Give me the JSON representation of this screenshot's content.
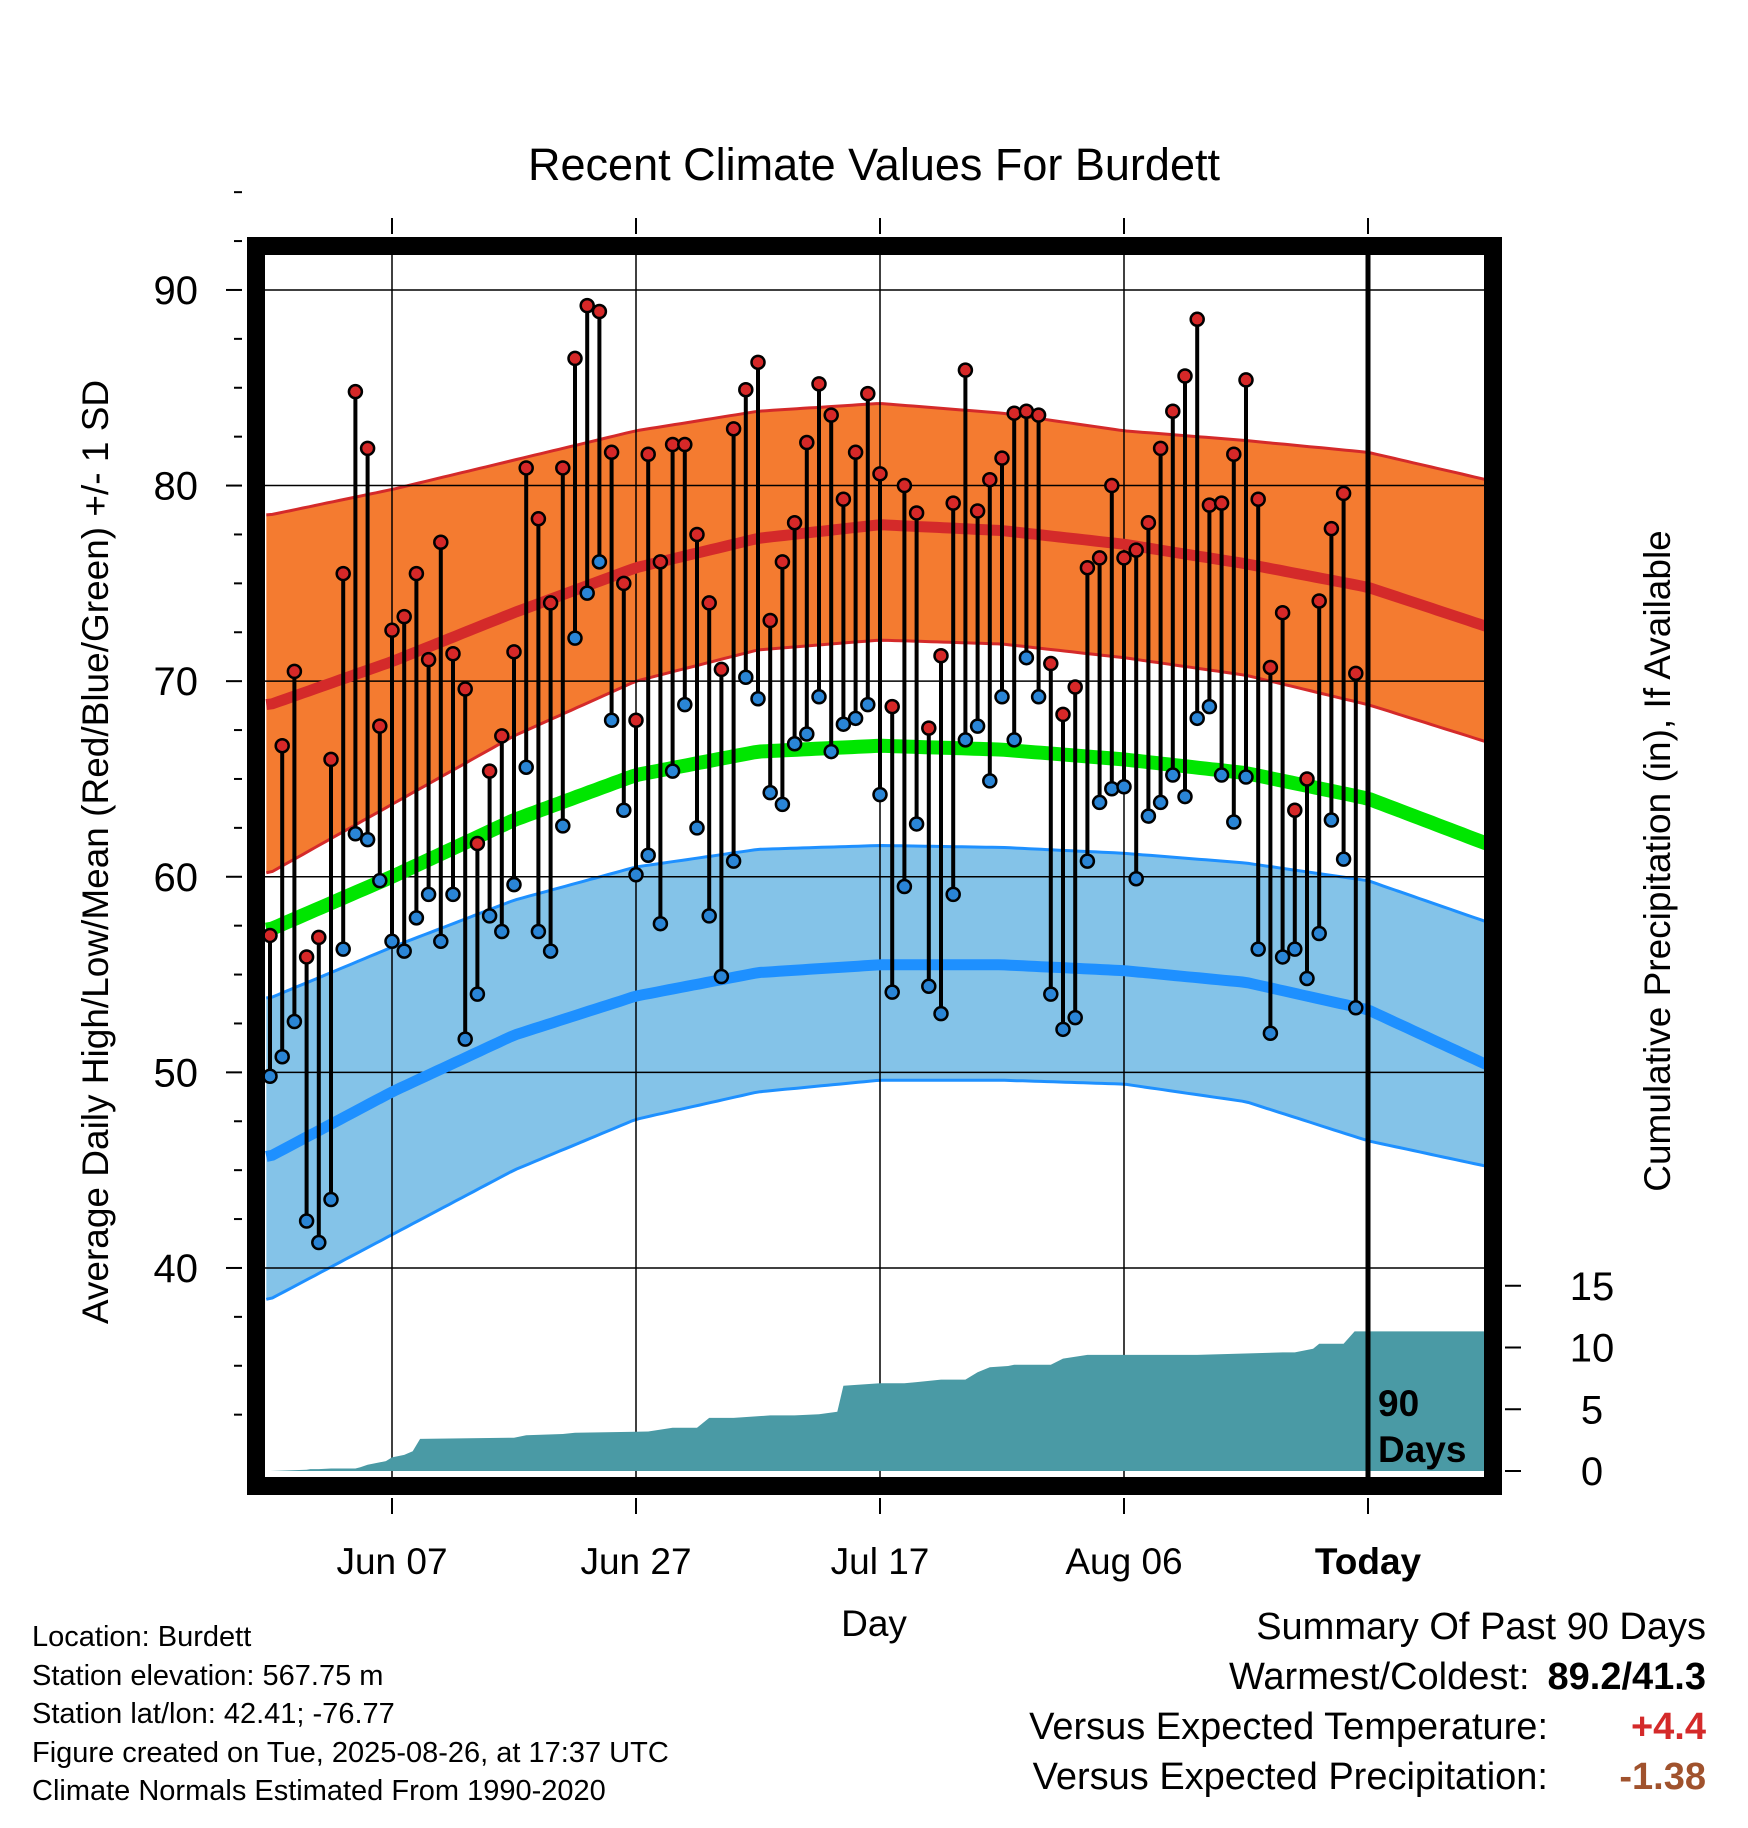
{
  "chart_data": {
    "type": "line",
    "title": "Recent Climate Values For Burdett",
    "xlabel": "Day",
    "ylabel": "Average Daily High/Low/Mean (Red/Blue/Green) +/- 1 SD",
    "y2label": "Cumulative Precipitation (in), If Available",
    "ylim": [
      31,
      95
    ],
    "y2lim": [
      -0.5,
      16.2
    ],
    "y_ticks": [
      40,
      50,
      60,
      70,
      80,
      90
    ],
    "y2_ticks": [
      0,
      5,
      10,
      15
    ],
    "x_tick_labels": [
      "Jun 07",
      "Jun 27",
      "Jul 17",
      "Aug 06",
      "Today"
    ],
    "x_tick_days": [
      10,
      30,
      50,
      70,
      90
    ],
    "xlim": [
      -0.3,
      99.7
    ],
    "today_day": 90,
    "today_annotation": [
      "90",
      "Days"
    ],
    "grid": true,
    "normals": {
      "high_mean": {
        "days": [
          0,
          10,
          20,
          30,
          40,
          50,
          60,
          70,
          80,
          90,
          99.7
        ],
        "values": [
          68.8,
          71.0,
          73.5,
          75.8,
          77.3,
          78.0,
          77.7,
          77.0,
          76.0,
          74.8,
          72.8
        ]
      },
      "high_upper": {
        "days": [
          0,
          10,
          20,
          30,
          40,
          50,
          60,
          70,
          80,
          90,
          99.7
        ],
        "values": [
          78.5,
          79.8,
          81.3,
          82.8,
          83.8,
          84.2,
          83.7,
          82.8,
          82.3,
          81.7,
          80.3
        ]
      },
      "high_lower": {
        "days": [
          0,
          10,
          20,
          30,
          40,
          50,
          60,
          70,
          80,
          90,
          99.7
        ],
        "values": [
          60.2,
          63.7,
          67.2,
          70.0,
          71.6,
          72.1,
          71.9,
          71.2,
          70.3,
          68.8,
          66.9
        ]
      },
      "mean": {
        "days": [
          0,
          10,
          20,
          30,
          40,
          50,
          60,
          70,
          80,
          90,
          99.7
        ],
        "values": [
          57.3,
          60.0,
          62.9,
          65.2,
          66.4,
          66.7,
          66.5,
          66.0,
          65.3,
          64.0,
          61.7
        ]
      },
      "low_mean": {
        "days": [
          0,
          10,
          20,
          30,
          40,
          50,
          60,
          70,
          80,
          90,
          99.7
        ],
        "values": [
          45.7,
          49.0,
          51.9,
          53.9,
          55.1,
          55.5,
          55.5,
          55.2,
          54.6,
          53.2,
          50.4
        ]
      },
      "low_upper": {
        "days": [
          0,
          10,
          20,
          30,
          40,
          50,
          60,
          70,
          80,
          90,
          99.7
        ],
        "values": [
          53.8,
          56.4,
          58.8,
          60.5,
          61.4,
          61.6,
          61.5,
          61.2,
          60.7,
          59.8,
          57.7
        ]
      },
      "low_lower": {
        "days": [
          0,
          10,
          20,
          30,
          40,
          50,
          60,
          70,
          80,
          90,
          99.7
        ],
        "values": [
          38.4,
          41.7,
          45.0,
          47.6,
          49.0,
          49.6,
          49.6,
          49.4,
          48.5,
          46.5,
          45.2
        ]
      }
    },
    "daily": {
      "day_start": 0,
      "highs": [
        57.0,
        66.7,
        70.5,
        55.9,
        56.9,
        66.0,
        75.5,
        84.8,
        81.9,
        67.7,
        72.6,
        73.3,
        75.5,
        71.1,
        77.1,
        71.4,
        69.6,
        61.7,
        65.4,
        67.2,
        71.5,
        80.9,
        78.3,
        74.0,
        80.9,
        86.5,
        89.2,
        88.9,
        81.7,
        75.0,
        68.0,
        81.6,
        76.1,
        82.1,
        82.1,
        77.5,
        74.0,
        70.6,
        82.9,
        84.9,
        86.3,
        73.1,
        76.1,
        78.1,
        82.2,
        85.2,
        83.6,
        79.3,
        81.7,
        84.7,
        80.6,
        68.7,
        80.0,
        78.6,
        67.6,
        71.3,
        79.1,
        85.9,
        78.7,
        80.3,
        81.4,
        83.7,
        83.8,
        83.6,
        70.9,
        68.3,
        69.7,
        75.8,
        76.3,
        80.0,
        76.3,
        76.7,
        78.1,
        81.9,
        83.8,
        85.6,
        88.5,
        79.0,
        79.1,
        81.6,
        85.4,
        79.3,
        70.7,
        73.5,
        63.4,
        65.0,
        74.1,
        77.8,
        79.6,
        70.4
      ],
      "lows": [
        49.8,
        50.8,
        52.6,
        42.4,
        41.3,
        43.5,
        56.3,
        62.2,
        61.9,
        59.8,
        56.7,
        56.2,
        57.9,
        59.1,
        56.7,
        59.1,
        51.7,
        54.0,
        58.0,
        57.2,
        59.6,
        65.6,
        57.2,
        56.2,
        62.6,
        72.2,
        74.5,
        76.1,
        68.0,
        63.4,
        60.1,
        61.1,
        57.6,
        65.4,
        68.8,
        62.5,
        58.0,
        54.9,
        60.8,
        70.2,
        69.1,
        64.3,
        63.7,
        66.8,
        67.3,
        69.2,
        66.4,
        67.8,
        68.1,
        68.8,
        64.2,
        54.1,
        59.5,
        62.7,
        54.4,
        53.0,
        59.1,
        67.0,
        67.7,
        64.9,
        69.2,
        67.0,
        71.2,
        69.2,
        54.0,
        52.2,
        52.8,
        60.8,
        63.8,
        64.5,
        64.6,
        59.9,
        63.1,
        63.8,
        65.2,
        64.1,
        68.1,
        68.7,
        65.2,
        62.8,
        65.1,
        56.3,
        52.0,
        55.9,
        56.3,
        54.8,
        57.1,
        62.9,
        60.9,
        53.3
      ]
    },
    "precip": {
      "days": [
        0,
        3,
        3.3,
        4,
        5,
        7,
        7.4,
        8,
        9.5,
        10,
        11,
        11.7,
        12.3,
        20,
        21,
        24,
        25,
        31,
        33,
        35,
        36,
        38,
        41,
        43,
        45,
        46.5,
        47,
        50,
        52,
        53,
        55,
        57,
        58,
        59,
        60.5,
        61,
        64,
        65,
        67,
        75,
        76,
        83,
        84,
        85.5,
        86,
        88,
        88.9,
        90,
        99.7
      ],
      "values": [
        0.0,
        0.1,
        0.15,
        0.15,
        0.2,
        0.2,
        0.3,
        0.5,
        0.8,
        1.1,
        1.3,
        1.6,
        2.6,
        2.7,
        2.9,
        3.0,
        3.1,
        3.2,
        3.5,
        3.5,
        4.3,
        4.3,
        4.5,
        4.5,
        4.6,
        4.8,
        6.9,
        7.1,
        7.1,
        7.2,
        7.4,
        7.4,
        8.0,
        8.4,
        8.5,
        8.6,
        8.6,
        9.1,
        9.4,
        9.4,
        9.4,
        9.6,
        9.6,
        9.9,
        10.3,
        10.3,
        11.3,
        11.3,
        11.3
      ]
    },
    "colors": {
      "high_band": "#f47b30",
      "high_line": "#d42a2a",
      "low_band": "#84c3e8",
      "low_line": "#1e90ff",
      "mean_line": "#00e600",
      "precip": "#4a9aa5",
      "high_dot": "#d62828",
      "low_dot": "#2a85d6"
    }
  },
  "info": {
    "location": "Location: Burdett",
    "elevation": "Station elevation: 567.75 m",
    "latlon": "Station lat/lon: 42.41; -76.77",
    "created": "Figure created on Tue, 2025-08-26, at 17:37 UTC",
    "normals_note": "Climate Normals Estimated From 1990-2020"
  },
  "summary": {
    "title": "Summary Of Past 90 Days",
    "warm_cold_label": "Warmest/Coldest:",
    "warm_cold_value": "89.2/41.3",
    "temp_label": "Versus Expected Temperature:",
    "temp_value": "+4.4",
    "precip_label": "Versus Expected Precipitation:",
    "precip_value": "-1.38"
  }
}
